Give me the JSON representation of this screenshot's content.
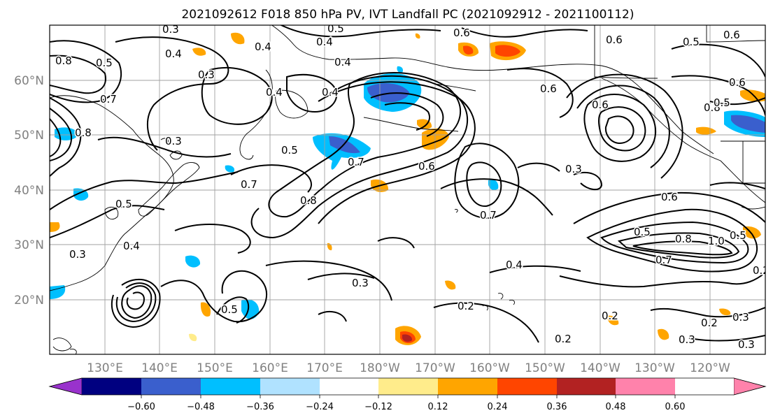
{
  "title": "2021092612 F018 850 hPa PV, IVT Landfall PC (2021092912 - 2021100112)",
  "lat_labels": [
    "60°N",
    "50°N",
    "40°N",
    "30°N",
    "20°N"
  ],
  "lon_labels": [
    "130°E",
    "140°E",
    "150°E",
    "160°E",
    "170°E",
    "180°W",
    "170°W",
    "160°W",
    "150°W",
    "140°W",
    "130°W",
    "120°W"
  ],
  "colorbar": {
    "colors": [
      "#9932cc",
      "#000080",
      "#3a5fcd",
      "#00bfff",
      "#b0e2ff",
      "#ffffff",
      "#ffec8b",
      "#ffa500",
      "#ff4500",
      "#b22222",
      "#ff82ab"
    ],
    "ticks": [
      "−0.60",
      "−0.48",
      "−0.36",
      "−0.24",
      "−0.12",
      "0.12",
      "0.24",
      "0.36",
      "0.48",
      "0.60"
    ]
  },
  "contour_labels": [
    "0.3",
    "0.5",
    "0.4",
    "0.6",
    "0.4",
    "0.8",
    "0.5",
    "0.4",
    "0.4",
    "0.3",
    "0.7",
    "0.4",
    "0.6",
    "0.6",
    "0.5",
    "0.7",
    "0.6",
    "0.4",
    "0.5",
    "0.7",
    "0.3",
    "0.8",
    "0.5",
    "0.4",
    "0.3",
    "0.8",
    "0.6",
    "0.7",
    "0.5",
    "0.8",
    "1.0",
    "0.7",
    "0.4",
    "0.3",
    "0.2",
    "0.2",
    "0.3",
    "0.3",
    "0.2",
    "0.3",
    "0.2",
    "0.5",
    "0.5",
    "0.6",
    "0.6",
    "0.6",
    "0.3",
    "0.2",
    "0.5",
    "0.8"
  ]
}
